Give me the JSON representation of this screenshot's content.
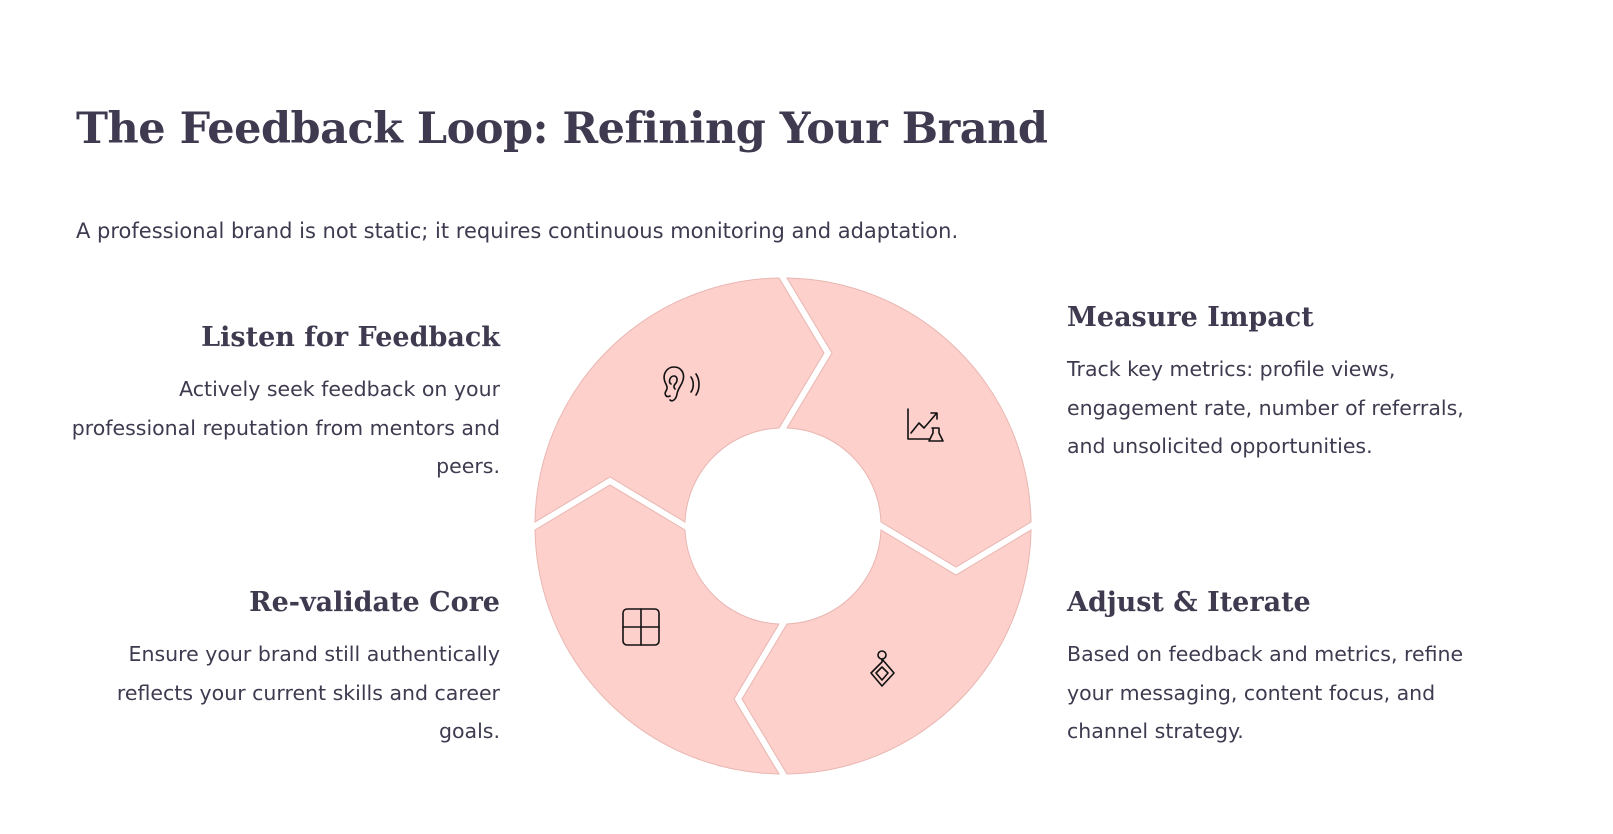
{
  "title": "The Feedback Loop: Refining Your Brand",
  "subtitle": "A professional brand is not static; it requires continuous monitoring and adaptation.",
  "colors": {
    "segment_fill": "#fdd0cc",
    "segment_stroke": "#e9b6b1",
    "text": "#3f3a4f",
    "icon": "#111111"
  },
  "steps": [
    {
      "heading": "Listen for Feedback",
      "body": "Actively seek feedback on your professional reputation from mentors and peers.",
      "icon": "ear-listening-icon"
    },
    {
      "heading": "Measure Impact",
      "body": "Track key metrics: profile views, engagement rate, number of referrals, and unsolicited opportunities.",
      "icon": "chart-flask-icon"
    },
    {
      "heading": "Adjust & Iterate",
      "body": "Based on feedback and metrics, refine your messaging, content focus, and channel strategy.",
      "icon": "diamond-pendant-icon"
    },
    {
      "heading": "Re-validate Core",
      "body": "Ensure your brand still authentically reflects your current skills and career goals.",
      "icon": "grid-icon"
    }
  ]
}
